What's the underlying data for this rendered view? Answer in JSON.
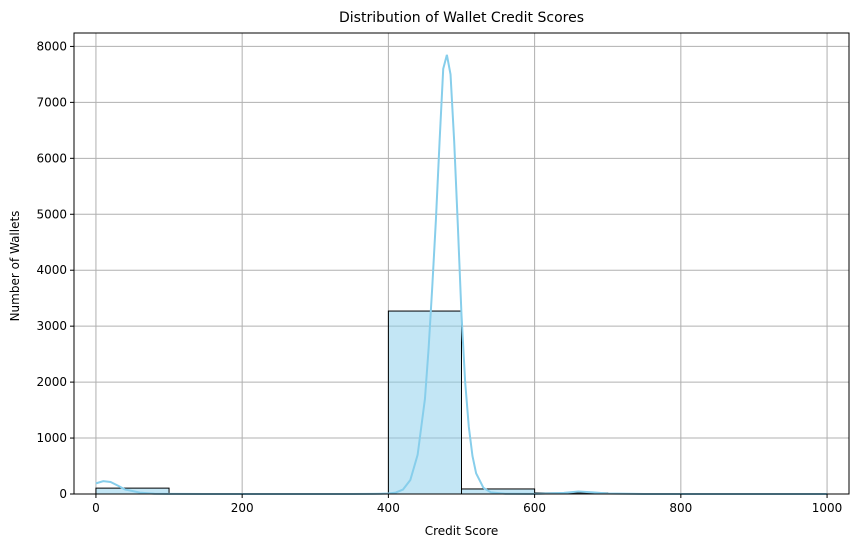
{
  "chart_data": {
    "type": "bar",
    "title": "Distribution of Wallet Credit Scores",
    "xlabel": "Credit Score",
    "ylabel": "Number of Wallets",
    "xlim": [
      -30,
      1030
    ],
    "ylim": [
      0,
      8240
    ],
    "xticks": [
      0,
      200,
      400,
      600,
      800,
      1000
    ],
    "yticks": [
      0,
      1000,
      2000,
      3000,
      4000,
      5000,
      6000,
      7000,
      8000
    ],
    "grid": true,
    "bins": [
      {
        "start": 0,
        "end": 100,
        "count": 105
      },
      {
        "start": 100,
        "end": 200,
        "count": 0
      },
      {
        "start": 200,
        "end": 300,
        "count": 0
      },
      {
        "start": 300,
        "end": 400,
        "count": 0
      },
      {
        "start": 400,
        "end": 500,
        "count": 3270
      },
      {
        "start": 500,
        "end": 600,
        "count": 90
      },
      {
        "start": 600,
        "end": 700,
        "count": 20
      },
      {
        "start": 700,
        "end": 800,
        "count": 0
      },
      {
        "start": 800,
        "end": 900,
        "count": 0
      },
      {
        "start": 900,
        "end": 1000,
        "count": 0
      }
    ],
    "kde": {
      "x": [
        0,
        10,
        20,
        30,
        40,
        60,
        80,
        100,
        150,
        200,
        250,
        300,
        350,
        380,
        400,
        410,
        420,
        430,
        440,
        450,
        455,
        460,
        465,
        470,
        475,
        480,
        485,
        490,
        495,
        500,
        505,
        510,
        515,
        520,
        530,
        540,
        560,
        600,
        640,
        660,
        680,
        700,
        750,
        800,
        900,
        1000
      ],
      "y": [
        190,
        230,
        215,
        150,
        80,
        25,
        5,
        2,
        0,
        0,
        0,
        0,
        0,
        2,
        8,
        25,
        80,
        250,
        700,
        1700,
        2600,
        3700,
        4900,
        6300,
        7600,
        7850,
        7500,
        6300,
        4800,
        3200,
        2000,
        1200,
        680,
        370,
        110,
        30,
        5,
        3,
        20,
        45,
        30,
        8,
        0,
        0,
        0,
        0
      ]
    },
    "colors": {
      "bar_fill": "#87CEEB",
      "bar_fill_opacity": 0.5,
      "bar_edge": "#000000",
      "kde_line": "#87CEEB",
      "grid": "#b0b0b0"
    }
  }
}
